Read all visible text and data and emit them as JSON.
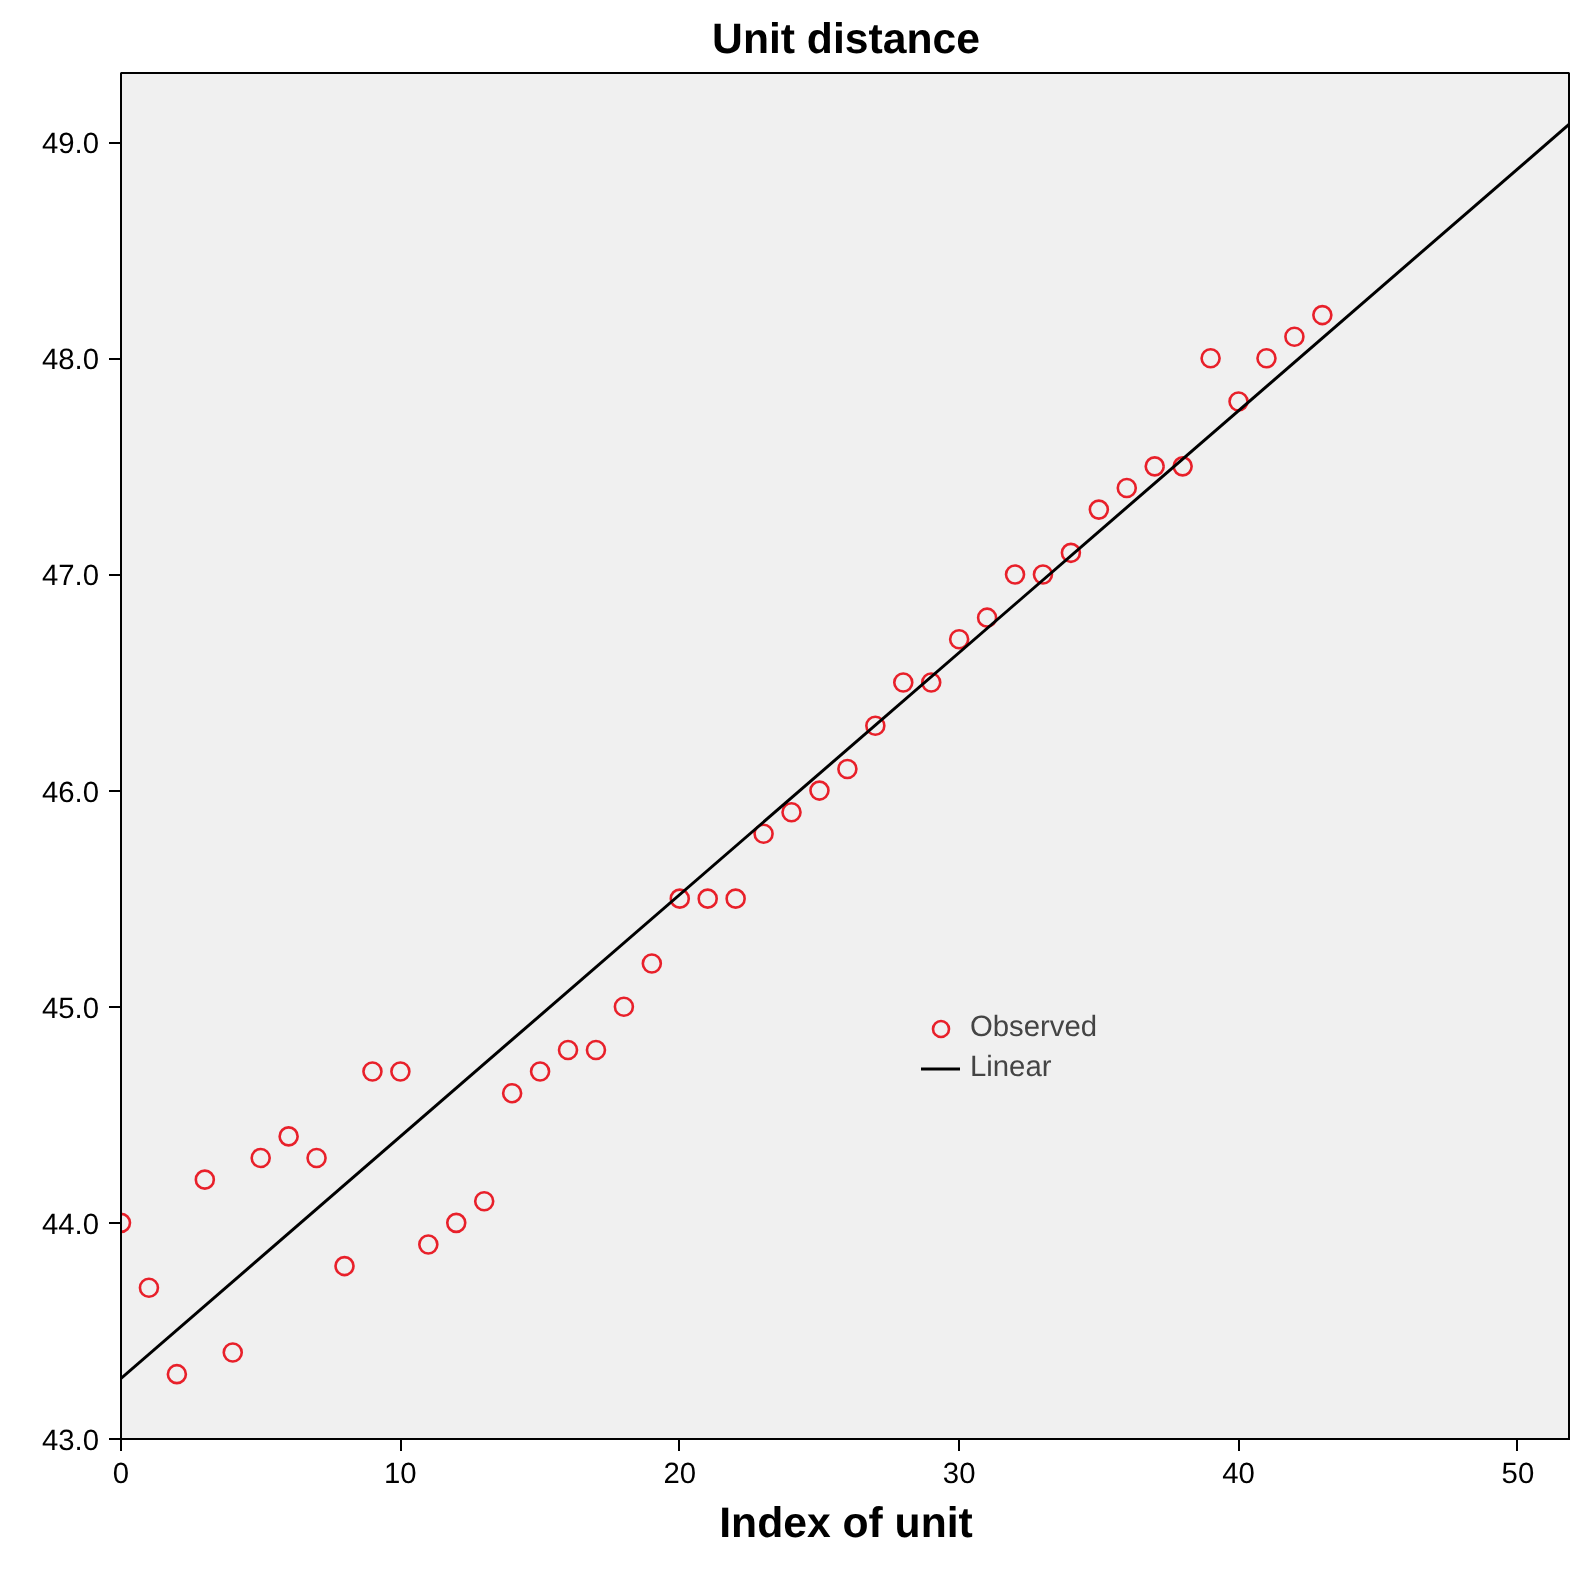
{
  "chart_data": {
    "type": "scatter",
    "title": "Unit distance",
    "xlabel": "Index of unit",
    "xlim": [
      0,
      51.9
    ],
    "ylim": [
      43.0,
      49.32
    ],
    "xticks": [
      0,
      10,
      20,
      30,
      40,
      50
    ],
    "yticks": [
      {
        "value": 43,
        "label": "43.0"
      },
      {
        "value": 44,
        "label": "44.0"
      },
      {
        "value": 45,
        "label": "45.0"
      },
      {
        "value": 46,
        "label": "46.0"
      },
      {
        "value": 47,
        "label": "47.0"
      },
      {
        "value": 48,
        "label": "48.0"
      },
      {
        "value": 49,
        "label": "49.0"
      }
    ],
    "grid": false,
    "legend": "right",
    "series": [
      {
        "name": "Observed",
        "marker": "circle",
        "color": "#e8202a",
        "x": [
          0,
          1,
          2,
          3,
          4,
          5,
          6,
          7,
          8,
          9,
          10,
          11,
          12,
          13,
          14,
          15,
          16,
          17,
          18,
          19,
          20,
          21,
          22,
          23,
          24,
          25,
          26,
          27,
          28,
          29,
          30,
          31,
          32,
          33,
          34,
          35,
          36,
          37,
          38,
          39,
          40,
          41,
          42,
          43
        ],
        "values": [
          44.0,
          43.7,
          43.3,
          44.2,
          43.4,
          44.3,
          44.4,
          44.3,
          43.8,
          44.7,
          44.7,
          43.9,
          44.0,
          44.1,
          44.6,
          44.7,
          44.8,
          44.8,
          45.0,
          45.2,
          45.5,
          45.5,
          45.5,
          45.8,
          45.9,
          46.0,
          46.1,
          46.3,
          46.5,
          46.5,
          46.7,
          46.8,
          47.0,
          47.0,
          47.1,
          47.3,
          47.4,
          47.5,
          47.5,
          48.0,
          47.8,
          48.0,
          48.1,
          48.2
        ]
      },
      {
        "name": "Linear",
        "type": "line",
        "line_style": "solid",
        "color": "#000000",
        "x": [
          0,
          51.9
        ],
        "values": [
          43.28,
          49.09
        ]
      }
    ]
  }
}
